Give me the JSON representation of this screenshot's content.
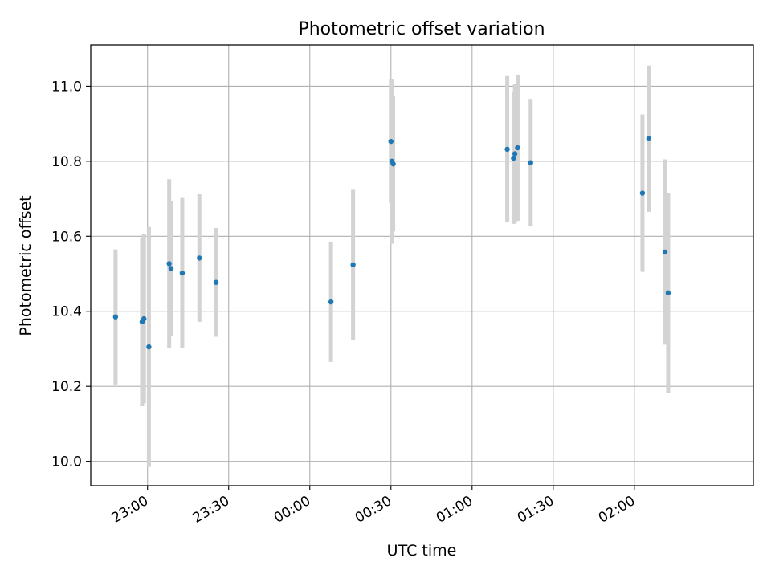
{
  "chart_data": {
    "type": "scatter",
    "title": "Photometric offset variation",
    "xlabel": "UTC time",
    "ylabel": "Photometric offset",
    "x_is_time": true,
    "xlim": [
      "22:39",
      "02:44"
    ],
    "ylim": [
      9.935,
      11.11
    ],
    "x_ticks": [
      "23:00",
      "23:30",
      "00:00",
      "00:30",
      "01:00",
      "01:30",
      "02:00"
    ],
    "y_ticks": [
      10.0,
      10.2,
      10.4,
      10.6,
      10.8,
      11.0
    ],
    "y_tick_labels": [
      "10.0",
      "10.2",
      "10.4",
      "10.6",
      "10.8",
      "11.0"
    ],
    "grid": true,
    "marker_color": "#1f77b4",
    "errorbar_color": "#d3d3d3",
    "points": [
      {
        "time": "22:48:10",
        "y": 10.385,
        "err": 0.18
      },
      {
        "time": "22:58:00",
        "y": 10.372,
        "err": 0.225
      },
      {
        "time": "22:58:40",
        "y": 10.38,
        "err": 0.225
      },
      {
        "time": "23:00:30",
        "y": 10.305,
        "err": 0.32
      },
      {
        "time": "23:08:00",
        "y": 10.527,
        "err": 0.225
      },
      {
        "time": "23:08:40",
        "y": 10.514,
        "err": 0.18
      },
      {
        "time": "23:12:50",
        "y": 10.502,
        "err": 0.2
      },
      {
        "time": "23:19:10",
        "y": 10.542,
        "err": 0.17
      },
      {
        "time": "23:25:20",
        "y": 10.477,
        "err": 0.145
      },
      {
        "time": "00:07:50",
        "y": 10.425,
        "err": 0.16
      },
      {
        "time": "00:16:00",
        "y": 10.524,
        "err": 0.2
      },
      {
        "time": "00:30:00",
        "y": 10.853,
        "err": 0.165
      },
      {
        "time": "00:30:20",
        "y": 10.8,
        "err": 0.22
      },
      {
        "time": "00:30:50",
        "y": 10.793,
        "err": 0.18
      },
      {
        "time": "01:13:00",
        "y": 10.832,
        "err": 0.195
      },
      {
        "time": "01:15:20",
        "y": 10.808,
        "err": 0.175
      },
      {
        "time": "01:15:50",
        "y": 10.82,
        "err": 0.185
      },
      {
        "time": "01:16:50",
        "y": 10.836,
        "err": 0.195
      },
      {
        "time": "01:21:40",
        "y": 10.796,
        "err": 0.17
      },
      {
        "time": "02:03:00",
        "y": 10.715,
        "err": 0.21
      },
      {
        "time": "02:05:20",
        "y": 10.86,
        "err": 0.195
      },
      {
        "time": "02:11:20",
        "y": 10.558,
        "err": 0.247
      },
      {
        "time": "02:12:30",
        "y": 10.449,
        "err": 0.267
      }
    ]
  }
}
